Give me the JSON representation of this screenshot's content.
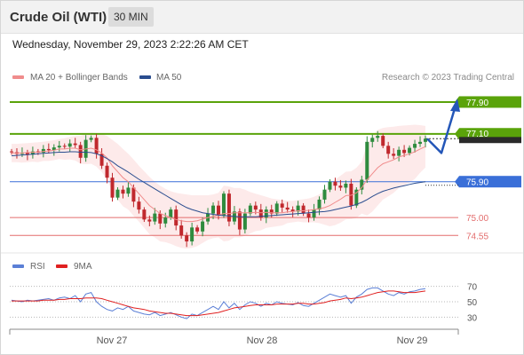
{
  "header": {
    "title": "Crude Oil (WTI)",
    "timeframe": "30 MIN"
  },
  "timestamp": "Wednesday, November 29, 2023 2:22:26 AM CET",
  "legend": {
    "ma20_label": "MA 20 + Bollinger Bands",
    "ma50_label": "MA 50",
    "ma20_color": "#f08c8c",
    "ma50_color": "#2a4d8f",
    "copyright": "Research © 2023 Trading Central"
  },
  "rsi_legend": {
    "rsi_label": "RSI",
    "ma_label": "9MA",
    "rsi_color": "#5b7fd6",
    "ma_color": "#e02020"
  },
  "chart_data": [
    {
      "type": "candlestick",
      "title": "",
      "x_tick_labels": [
        "Nov 27",
        "Nov 28",
        "Nov 29"
      ],
      "ylim": [
        74.2,
        78.3
      ],
      "levels": [
        {
          "value": 77.9,
          "label": "77.90",
          "kind": "resistance",
          "color": "#5aa30a"
        },
        {
          "value": 77.1,
          "label": "77.10",
          "kind": "resistance",
          "color": "#5aa30a"
        },
        {
          "value": 75.9,
          "label": "75.90",
          "kind": "pivot",
          "color": "#3a6fd8"
        },
        {
          "value": 75.0,
          "label": "75.00",
          "kind": "support",
          "color": "#e36d6d"
        },
        {
          "value": 74.55,
          "label": "74.55",
          "kind": "support",
          "color": "#e36d6d"
        }
      ],
      "current_price": 76.98,
      "scenario_path": [
        76.98,
        76.62,
        77.9
      ],
      "closes": [
        76.64,
        76.6,
        76.62,
        76.58,
        76.66,
        76.63,
        76.72,
        76.69,
        76.76,
        76.8,
        76.78,
        76.86,
        76.82,
        76.5,
        76.95,
        77.0,
        76.6,
        76.3,
        76.0,
        75.5,
        75.7,
        75.6,
        75.75,
        75.4,
        75.2,
        74.95,
        74.9,
        75.1,
        74.85,
        75.0,
        75.2,
        74.8,
        74.55,
        74.4,
        74.75,
        74.65,
        74.9,
        75.1,
        75.3,
        75.05,
        75.6,
        74.9,
        75.15,
        74.7,
        75.1,
        75.3,
        75.2,
        75.0,
        75.2,
        75.1,
        75.35,
        75.25,
        75.2,
        75.15,
        75.3,
        75.1,
        75.0,
        75.2,
        75.45,
        75.7,
        75.9,
        75.8,
        75.75,
        75.85,
        75.3,
        75.7,
        75.95,
        76.9,
        77.0,
        77.05,
        76.8,
        76.6,
        76.55,
        76.7,
        76.62,
        76.75,
        76.85,
        76.9,
        76.98
      ],
      "ma20": [
        76.62,
        76.62,
        76.62,
        76.63,
        76.64,
        76.64,
        76.66,
        76.67,
        76.69,
        76.72,
        76.72,
        76.74,
        76.74,
        76.7,
        76.72,
        76.74,
        76.7,
        76.62,
        76.5,
        76.3,
        76.15,
        76.0,
        75.9,
        75.75,
        75.6,
        75.45,
        75.3,
        75.2,
        75.1,
        75.05,
        75.0,
        74.95,
        74.92,
        74.9,
        74.9,
        74.92,
        74.96,
        75.0,
        75.03,
        75.06,
        75.1,
        75.1,
        75.12,
        75.12,
        75.12,
        75.12,
        75.13,
        75.12,
        75.13,
        75.12,
        75.12,
        75.12,
        75.14,
        75.15,
        75.17,
        75.17,
        75.18,
        75.2,
        75.22,
        75.25,
        75.3,
        75.38,
        75.46,
        75.55,
        75.56,
        75.62,
        75.75,
        75.95,
        76.1,
        76.25,
        76.35,
        76.4,
        76.45,
        76.52,
        76.56,
        76.6,
        76.65,
        76.72,
        76.78
      ],
      "ma50": [
        76.55,
        76.56,
        76.57,
        76.58,
        76.59,
        76.6,
        76.61,
        76.62,
        76.63,
        76.64,
        76.64,
        76.65,
        76.65,
        76.64,
        76.64,
        76.63,
        76.6,
        76.55,
        76.48,
        76.4,
        76.3,
        76.22,
        76.14,
        76.05,
        75.96,
        75.88,
        75.8,
        75.72,
        75.64,
        75.56,
        75.48,
        75.4,
        75.32,
        75.25,
        75.2,
        75.16,
        75.12,
        75.1,
        75.08,
        75.06,
        75.05,
        75.04,
        75.03,
        75.02,
        75.02,
        75.02,
        75.02,
        75.03,
        75.04,
        75.05,
        75.06,
        75.07,
        75.08,
        75.09,
        75.1,
        75.11,
        75.12,
        75.13,
        75.14,
        75.15,
        75.17,
        75.2,
        75.23,
        75.26,
        75.29,
        75.33,
        75.38,
        75.45,
        75.53,
        75.6,
        75.66,
        75.7,
        75.74,
        75.77,
        75.8,
        75.83,
        75.86,
        75.88,
        75.9
      ],
      "bollinger_upper": [
        76.85,
        76.85,
        76.86,
        76.87,
        76.88,
        76.89,
        76.9,
        76.92,
        76.94,
        76.97,
        76.99,
        77.02,
        77.05,
        77.05,
        77.1,
        77.13,
        77.12,
        77.1,
        77.05,
        76.95,
        76.85,
        76.72,
        76.6,
        76.46,
        76.3,
        76.16,
        76.02,
        75.9,
        75.8,
        75.72,
        75.66,
        75.62,
        75.6,
        75.58,
        75.56,
        75.56,
        75.56,
        75.56,
        75.58,
        75.62,
        75.8,
        75.78,
        75.74,
        75.74,
        75.7,
        75.64,
        75.6,
        75.56,
        75.52,
        75.48,
        75.46,
        75.44,
        75.42,
        75.42,
        75.44,
        75.46,
        75.48,
        75.52,
        75.58,
        75.68,
        75.82,
        75.95,
        76.05,
        76.15,
        76.16,
        76.25,
        76.4,
        76.85,
        77.05,
        77.2,
        77.25,
        77.27,
        77.28,
        77.3,
        77.31,
        77.32,
        77.33,
        77.32,
        77.3
      ],
      "bollinger_lower": [
        76.39,
        76.39,
        76.38,
        76.39,
        76.4,
        76.39,
        76.42,
        76.42,
        76.44,
        76.47,
        76.45,
        76.46,
        76.43,
        76.35,
        76.34,
        76.35,
        76.28,
        76.14,
        75.95,
        75.65,
        75.45,
        75.28,
        75.2,
        75.04,
        74.9,
        74.74,
        74.58,
        74.5,
        74.4,
        74.38,
        74.34,
        74.28,
        74.24,
        74.22,
        74.24,
        74.28,
        74.36,
        74.44,
        74.48,
        74.5,
        74.4,
        74.42,
        74.5,
        74.5,
        74.54,
        74.6,
        74.66,
        74.68,
        74.74,
        74.76,
        74.78,
        74.8,
        74.86,
        74.88,
        74.9,
        74.88,
        74.88,
        74.88,
        74.86,
        74.82,
        74.78,
        74.81,
        74.87,
        74.95,
        74.96,
        74.99,
        75.1,
        75.05,
        75.15,
        75.3,
        75.45,
        75.53,
        75.62,
        75.74,
        75.81,
        75.88,
        75.97,
        76.12,
        76.26
      ]
    },
    {
      "type": "line",
      "title": "RSI",
      "ylim": [
        20,
        80
      ],
      "y_tick_labels": [
        "70",
        "50",
        "30"
      ],
      "series": [
        {
          "name": "RSI",
          "values": [
            52,
            51,
            50,
            52,
            51,
            52,
            53,
            54,
            52,
            55,
            56,
            54,
            58,
            50,
            60,
            62,
            50,
            44,
            40,
            38,
            42,
            40,
            44,
            38,
            36,
            34,
            33,
            36,
            32,
            34,
            36,
            33,
            30,
            28,
            34,
            32,
            36,
            40,
            44,
            40,
            50,
            42,
            48,
            40,
            46,
            50,
            48,
            44,
            48,
            46,
            50,
            48,
            47,
            46,
            49,
            45,
            44,
            48,
            52,
            56,
            60,
            58,
            56,
            58,
            48,
            56,
            60,
            66,
            68,
            68,
            64,
            60,
            58,
            62,
            60,
            63,
            64,
            66,
            67
          ]
        },
        {
          "name": "9MA",
          "values": [
            51,
            51,
            51,
            51,
            51,
            51,
            52,
            52,
            52,
            53,
            53,
            54,
            54,
            54,
            55,
            55,
            55,
            54,
            52,
            50,
            48,
            46,
            44,
            42,
            41,
            40,
            38,
            37,
            36,
            35,
            35,
            34,
            33,
            32,
            32,
            32,
            33,
            34,
            35,
            36,
            38,
            40,
            42,
            43,
            44,
            45,
            46,
            46,
            46,
            46,
            47,
            47,
            47,
            47,
            48,
            48,
            47,
            47,
            48,
            49,
            51,
            52,
            53,
            55,
            54,
            55,
            56,
            58,
            60,
            62,
            63,
            64,
            64,
            63,
            62,
            62,
            62,
            63,
            64
          ]
        }
      ]
    }
  ]
}
